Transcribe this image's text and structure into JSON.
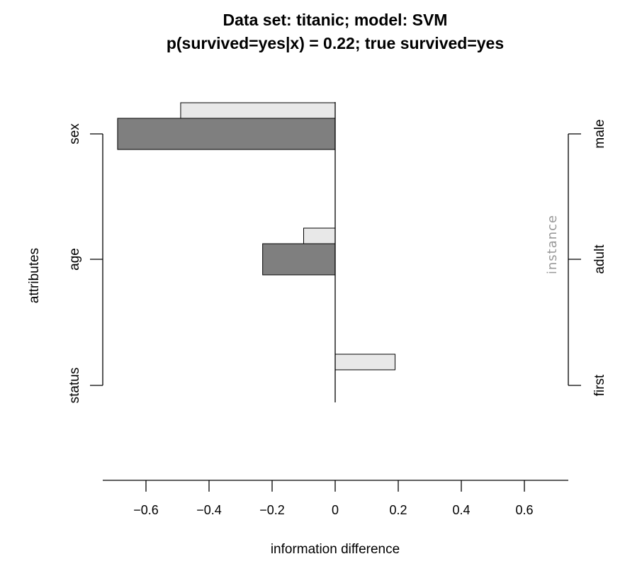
{
  "chart_data": {
    "type": "bar",
    "title_line1": "Data set: titanic;  model: SVM",
    "title_line2": "p(survived=yes|x) = 0.22;  true survived=yes",
    "xlabel": "information difference",
    "ylabel": "attributes",
    "right_axis_label": "instance",
    "xlim": [
      -0.75,
      0.75
    ],
    "x_ticks": [
      -0.6,
      -0.4,
      -0.2,
      0,
      0.2,
      0.4,
      0.6
    ],
    "x_tick_labels": [
      "−0.6",
      "−0.4",
      "−0.2",
      "0",
      "0.2",
      "0.4",
      "0.6"
    ],
    "categories": [
      "sex",
      "age",
      "status"
    ],
    "instance_values": [
      "male",
      "adult",
      "first"
    ],
    "series": [
      {
        "values": [
          -0.49,
          -0.1,
          0.19
        ]
      },
      {
        "values": [
          -0.69,
          -0.23,
          0.0
        ]
      }
    ],
    "colors": {
      "light_bar": "#e8e8e8",
      "dark_bar": "#7f7f7f",
      "instance_text": "#999999"
    }
  }
}
